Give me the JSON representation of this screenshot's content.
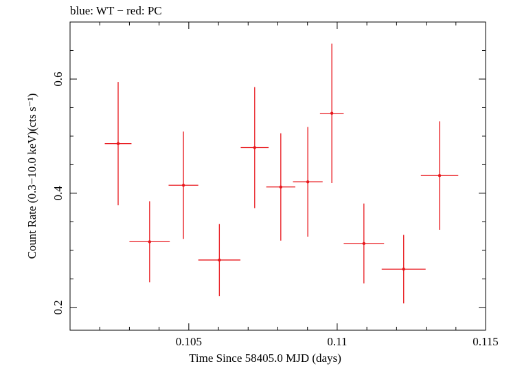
{
  "chart_data": {
    "type": "scatter",
    "title": "blue: WT − red: PC",
    "xlabel": "Time Since 58405.0 MJD (days)",
    "ylabel": "Count Rate (0.3−10.0 keV)(cts s⁻¹)",
    "xlim": [
      0.101,
      0.115
    ],
    "ylim": [
      0.16,
      0.7
    ],
    "xticks": [
      {
        "value": 0.105,
        "label": "0.105"
      },
      {
        "value": 0.11,
        "label": "0.11"
      },
      {
        "value": 0.115,
        "label": "0.115"
      }
    ],
    "yticks": [
      {
        "value": 0.2,
        "label": "0.2"
      },
      {
        "value": 0.4,
        "label": "0.4"
      },
      {
        "value": 0.6,
        "label": "0.6"
      }
    ],
    "grid": false,
    "series": [
      {
        "color": "#e8161b",
        "points": [
          {
            "x": 0.10262,
            "xerr": 0.00045,
            "y": 0.487,
            "yerr_low": 0.108,
            "yerr_high": 0.108
          },
          {
            "x": 0.10368,
            "xerr": 0.00068,
            "y": 0.315,
            "yerr_low": 0.071,
            "yerr_high": 0.071
          },
          {
            "x": 0.10482,
            "xerr": 0.0005,
            "y": 0.414,
            "yerr_low": 0.094,
            "yerr_high": 0.094
          },
          {
            "x": 0.10603,
            "xerr": 0.00071,
            "y": 0.283,
            "yerr_low": 0.063,
            "yerr_high": 0.063
          },
          {
            "x": 0.10722,
            "xerr": 0.00047,
            "y": 0.48,
            "yerr_low": 0.106,
            "yerr_high": 0.106
          },
          {
            "x": 0.1081,
            "xerr": 0.00049,
            "y": 0.411,
            "yerr_low": 0.094,
            "yerr_high": 0.094
          },
          {
            "x": 0.10901,
            "xerr": 0.0005,
            "y": 0.42,
            "yerr_low": 0.096,
            "yerr_high": 0.096
          },
          {
            "x": 0.10982,
            "xerr": 0.0004,
            "y": 0.54,
            "yerr_low": 0.122,
            "yerr_high": 0.122
          },
          {
            "x": 0.1109,
            "xerr": 0.00068,
            "y": 0.312,
            "yerr_low": 0.07,
            "yerr_high": 0.07
          },
          {
            "x": 0.11224,
            "xerr": 0.00074,
            "y": 0.267,
            "yerr_low": 0.06,
            "yerr_high": 0.06
          },
          {
            "x": 0.11345,
            "xerr": 0.00063,
            "y": 0.431,
            "yerr_low": 0.095,
            "yerr_high": 0.095
          }
        ]
      }
    ]
  }
}
